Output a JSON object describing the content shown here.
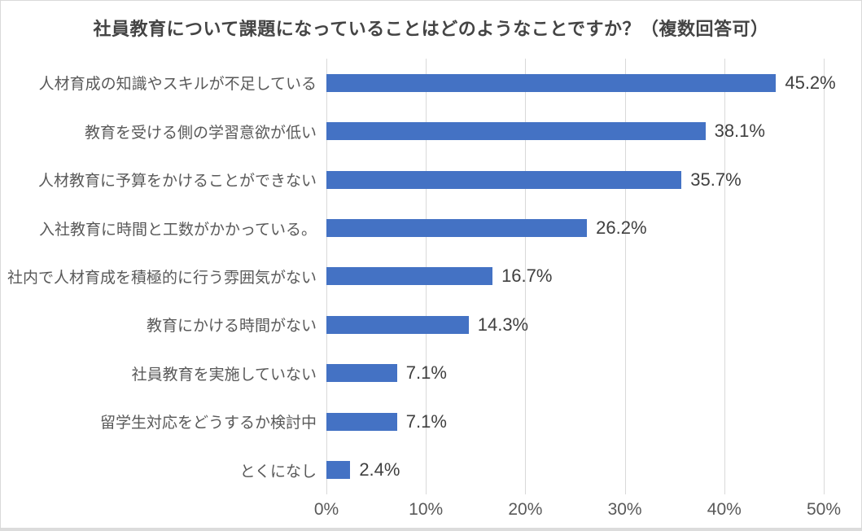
{
  "chart_data": {
    "type": "bar",
    "orientation": "horizontal",
    "title": "社員教育について課題になっていることはどのようなことですか？（複数回答可）",
    "categories": [
      "人材育成の知識やスキルが不足している",
      "教育を受ける側の学習意欲が低い",
      "人材教育に予算をかけることができない",
      "入社教育に時間と工数がかかっている。",
      "社内で人材育成を積極的に行う雰囲気がない",
      "教育にかける時間がない",
      "社員教育を実施していない",
      "留学生対応をどうするか検討中",
      "とくになし"
    ],
    "values": [
      45.2,
      38.1,
      35.7,
      26.2,
      16.7,
      14.3,
      7.1,
      7.1,
      2.4
    ],
    "value_labels": [
      "45.2%",
      "38.1%",
      "35.7%",
      "26.2%",
      "16.7%",
      "14.3%",
      "7.1%",
      "7.1%",
      "2.4%"
    ],
    "x_ticks": [
      "0%",
      "10%",
      "20%",
      "30%",
      "40%",
      "50%"
    ],
    "xlim": [
      0,
      50
    ],
    "xlabel": "",
    "ylabel": "",
    "legend": "none",
    "grid": "vertical-only",
    "bar_color": "#4472C4",
    "gridline_color": "#D9D9D9",
    "text_color": "#595959"
  }
}
